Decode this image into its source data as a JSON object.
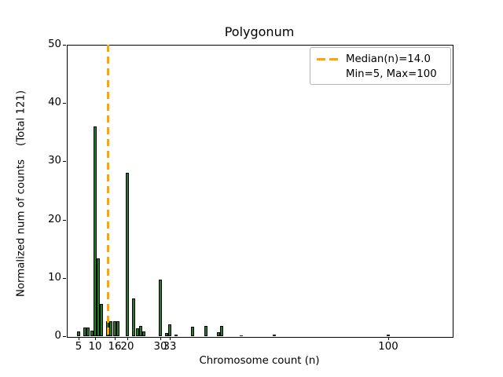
{
  "chart_data": {
    "type": "bar",
    "title": "Polygonum",
    "xlabel": "Chromosome count (n)",
    "ylabel": "Normalized num of counts    (Total 121)",
    "total_counts": 121,
    "x": [
      5,
      7,
      8,
      9,
      10,
      11,
      12,
      14,
      15,
      16,
      17,
      20,
      22,
      23,
      24,
      25,
      30,
      32,
      33,
      35,
      40,
      44,
      48,
      49,
      55,
      65,
      100
    ],
    "values": [
      0.8,
      1.5,
      1.5,
      0.9,
      36.0,
      13.3,
      5.5,
      2.6,
      2.5,
      2.5,
      2.5,
      28.0,
      6.5,
      1.3,
      1.7,
      0.8,
      9.7,
      0.5,
      2.0,
      0.3,
      1.6,
      1.7,
      0.7,
      1.8,
      0.15,
      0.25,
      0.3
    ],
    "bar_width_units": 1,
    "xticks": [
      5,
      10,
      16,
      20,
      30,
      33,
      100
    ],
    "yticks": [
      0,
      10,
      20,
      30,
      40,
      50
    ],
    "xlim": [
      1.4,
      119.5
    ],
    "ylim": [
      0,
      50
    ],
    "grid": false,
    "median_line": {
      "x": 14.0,
      "style": "dashed",
      "color": "#FFA500"
    },
    "colors": {
      "bar_fill": "#1f7e24",
      "bar_edge": "#000000",
      "median": "#FFA500",
      "spine": "#000000"
    },
    "legend": {
      "position": "upper right",
      "entries": [
        {
          "handle": "orange-dashed-line",
          "label": "Median(n)=14.0"
        },
        {
          "handle": "none",
          "label": "Min=5, Max=100"
        }
      ]
    }
  }
}
